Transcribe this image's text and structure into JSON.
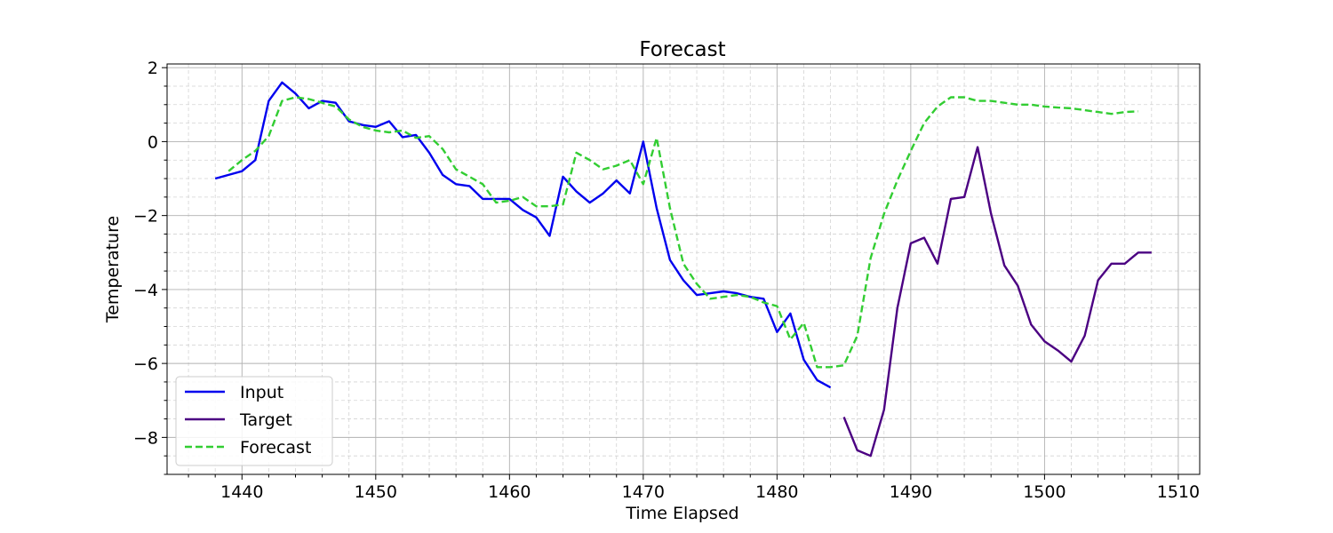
{
  "chart_data": {
    "type": "line",
    "title": "Forecast",
    "xlabel": "Time Elapsed",
    "ylabel": "Temperature",
    "xlim": [
      1434.4,
      1511.6
    ],
    "ylim": [
      -9.0,
      2.1
    ],
    "xticks": [
      1440,
      1450,
      1460,
      1470,
      1480,
      1490,
      1500,
      1510
    ],
    "yticks": [
      -8,
      -6,
      -4,
      -2,
      0,
      2
    ],
    "grid": true,
    "legend_position": "lower-left",
    "series": [
      {
        "name": "Input",
        "color": "#0000ee",
        "style": "solid",
        "x": [
          1438,
          1439,
          1440,
          1441,
          1442,
          1443,
          1444,
          1445,
          1446,
          1447,
          1448,
          1449,
          1450,
          1451,
          1452,
          1453,
          1454,
          1455,
          1456,
          1457,
          1458,
          1459,
          1460,
          1461,
          1462,
          1463,
          1464,
          1465,
          1466,
          1467,
          1468,
          1469,
          1470,
          1471,
          1472,
          1473,
          1474,
          1475,
          1476,
          1477,
          1478,
          1479,
          1480,
          1481,
          1482,
          1483,
          1484
        ],
        "y": [
          -1.0,
          -0.9,
          -0.8,
          -0.5,
          1.1,
          1.6,
          1.3,
          0.9,
          1.1,
          1.05,
          0.55,
          0.45,
          0.4,
          0.55,
          0.12,
          0.18,
          -0.3,
          -0.9,
          -1.15,
          -1.2,
          -1.55,
          -1.55,
          -1.55,
          -1.85,
          -2.05,
          -2.55,
          -0.95,
          -1.35,
          -1.65,
          -1.4,
          -1.05,
          -1.4,
          0.0,
          -1.8,
          -3.2,
          -3.75,
          -4.15,
          -4.1,
          -4.05,
          -4.1,
          -4.2,
          -4.25,
          -5.15,
          -4.65,
          -5.9,
          -6.45,
          -6.65
        ]
      },
      {
        "name": "Target",
        "color": "#4b0082",
        "style": "solid",
        "x": [
          1485,
          1486,
          1487,
          1488,
          1489,
          1490,
          1491,
          1492,
          1493,
          1494,
          1495,
          1496,
          1497,
          1498,
          1499,
          1500,
          1501,
          1502,
          1503,
          1504,
          1505,
          1506,
          1507,
          1508
        ],
        "y": [
          -7.45,
          -8.35,
          -8.5,
          -7.25,
          -4.5,
          -2.75,
          -2.6,
          -3.3,
          -1.55,
          -1.5,
          -0.15,
          -1.95,
          -3.35,
          -3.9,
          -4.95,
          -5.4,
          -5.65,
          -5.95,
          -5.25,
          -3.75,
          -3.3,
          -3.3,
          -3.0,
          -3.0
        ]
      },
      {
        "name": "Forecast",
        "color": "#32cd32",
        "style": "dashed",
        "x": [
          1439,
          1440,
          1441,
          1442,
          1443,
          1444,
          1445,
          1446,
          1447,
          1448,
          1449,
          1450,
          1451,
          1452,
          1453,
          1454,
          1455,
          1456,
          1457,
          1458,
          1459,
          1460,
          1461,
          1462,
          1463,
          1464,
          1465,
          1466,
          1467,
          1468,
          1469,
          1470,
          1471,
          1472,
          1473,
          1474,
          1475,
          1476,
          1477,
          1478,
          1479,
          1480,
          1481,
          1482,
          1483,
          1484,
          1485,
          1486,
          1487,
          1488,
          1489,
          1490,
          1491,
          1492,
          1493,
          1494,
          1495,
          1496,
          1497,
          1498,
          1499,
          1500,
          1501,
          1502,
          1503,
          1504,
          1505,
          1506,
          1507
        ],
        "y": [
          -0.8,
          -0.5,
          -0.25,
          0.15,
          1.1,
          1.2,
          1.15,
          1.05,
          0.95,
          0.6,
          0.4,
          0.3,
          0.25,
          0.3,
          0.1,
          0.15,
          -0.2,
          -0.75,
          -0.95,
          -1.15,
          -1.65,
          -1.6,
          -1.5,
          -1.75,
          -1.75,
          -1.7,
          -0.3,
          -0.5,
          -0.75,
          -0.65,
          -0.5,
          -1.15,
          0.1,
          -1.8,
          -3.3,
          -3.85,
          -4.25,
          -4.2,
          -4.15,
          -4.2,
          -4.35,
          -4.45,
          -5.35,
          -4.9,
          -6.1,
          -6.1,
          -6.05,
          -5.25,
          -3.15,
          -1.95,
          -1.05,
          -0.25,
          0.5,
          0.95,
          1.2,
          1.2,
          1.1,
          1.1,
          1.05,
          1.0,
          1.0,
          0.95,
          0.92,
          0.9,
          0.85,
          0.8,
          0.75,
          0.8,
          0.82
        ]
      }
    ]
  }
}
